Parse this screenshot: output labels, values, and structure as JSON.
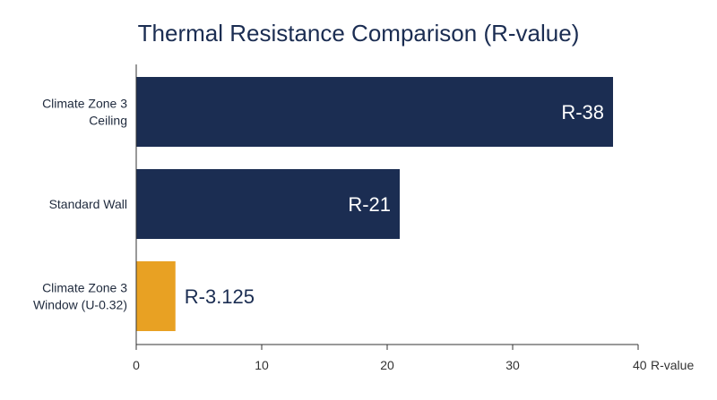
{
  "chart_data": {
    "type": "bar",
    "orientation": "horizontal",
    "title": "Thermal Resistance Comparison (R-value)",
    "xlabel": "R-value",
    "ylabel": "",
    "xlim": [
      0,
      40
    ],
    "xticks": [
      0,
      10,
      20,
      30,
      40
    ],
    "grid": false,
    "legend": "none",
    "categories": [
      [
        "Climate Zone 3",
        "Ceiling"
      ],
      [
        "Standard Wall"
      ],
      [
        "Climate Zone 3",
        "Window (U-0.32)"
      ]
    ],
    "values": [
      38,
      21,
      3.125
    ],
    "data_labels": [
      "R-38",
      "R-21",
      "R-3.125"
    ],
    "colors": [
      "#1b2d52",
      "#1b2d52",
      "#e8a123"
    ],
    "label_colors": {
      "inside": "#ffffff",
      "outside": "#1b2d52"
    }
  },
  "colors": {
    "title": "#1b2d52",
    "axis": "#333333"
  }
}
